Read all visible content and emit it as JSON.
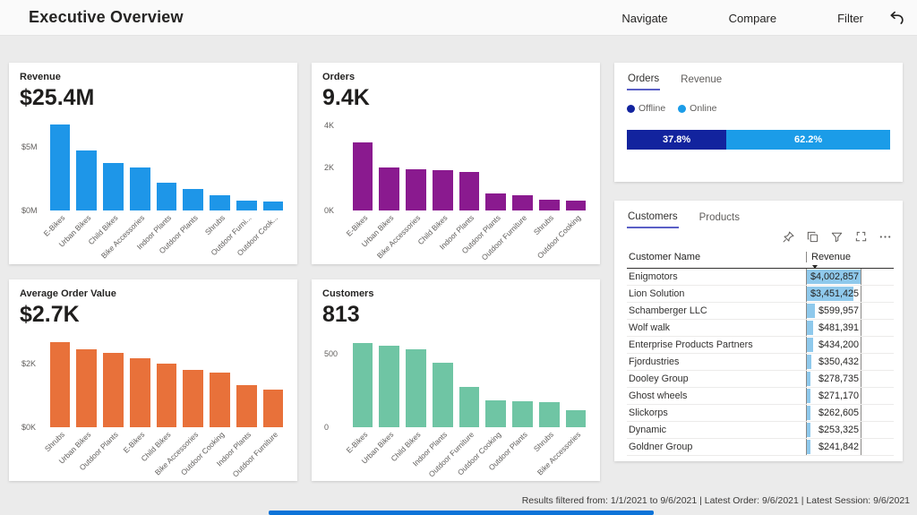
{
  "header": {
    "title": "Executive Overview",
    "nav": [
      "Navigate",
      "Compare",
      "Filter"
    ],
    "undo_icon": "undo-arrow"
  },
  "colors": {
    "background": "#EBEBEB",
    "card": "#FFFFFF",
    "text_dark": "#252423",
    "text_gray": "#605E5C",
    "tab_underline": "#5A5FC6",
    "table_data_bar": "#8FC9EC",
    "bottom_scrollbar": "#0C73D8"
  },
  "chart_data": [
    {
      "type": "bar",
      "title": "Revenue",
      "kpi_value": "$25.4M",
      "color": "#1E96E8",
      "unit": "$M",
      "ymax": 7.5,
      "yticks": [
        {
          "label": "$0M",
          "value": 0
        },
        {
          "label": "$5M",
          "value": 5
        }
      ],
      "categories": [
        "E-Bikes",
        "Urban Bikes",
        "Child Bikes",
        "Bike Accessories",
        "Indoor Plants",
        "Outdoor Plants",
        "Shrubs",
        "Outdoor Furni...",
        "Outdoor Cook..."
      ],
      "values": [
        6.7,
        4.7,
        3.7,
        3.4,
        2.2,
        1.7,
        1.2,
        0.8,
        0.7
      ]
    },
    {
      "type": "bar",
      "title": "Orders",
      "kpi_value": "9.4K",
      "color": "#8A1A8F",
      "unit": "K",
      "ymax": 4.5,
      "yticks": [
        {
          "label": "0K",
          "value": 0
        },
        {
          "label": "2K",
          "value": 2
        },
        {
          "label": "4K",
          "value": 4
        }
      ],
      "categories": [
        "E-Bikes",
        "Urban Bikes",
        "Bike Accessories",
        "Child Bikes",
        "Indoor Plants",
        "Outdoor Plants",
        "Outdoor Furniture",
        "Shrubs",
        "Outdoor Cooking"
      ],
      "values": [
        3.2,
        2.0,
        1.95,
        1.9,
        1.8,
        0.8,
        0.72,
        0.5,
        0.45
      ]
    },
    {
      "type": "bar",
      "title": "Average Order Value",
      "kpi_value": "$2.7K",
      "color": "#E8713A",
      "unit": "$K",
      "ymax": 3.0,
      "yticks": [
        {
          "label": "$0K",
          "value": 0
        },
        {
          "label": "$2K",
          "value": 2
        }
      ],
      "categories": [
        "Shrubs",
        "Urban Bikes",
        "Outdoor Plants",
        "E-Bikes",
        "Child Bikes",
        "Bike Accessories",
        "Outdoor Cooking",
        "Indoor Plants",
        "Outdoor Furniture"
      ],
      "values": [
        2.65,
        2.45,
        2.32,
        2.15,
        2.0,
        1.8,
        1.72,
        1.32,
        1.18
      ]
    },
    {
      "type": "bar",
      "title": "Customers",
      "kpi_value": "813",
      "color": "#6FC5A4",
      "unit": "",
      "ymax": 650,
      "yticks": [
        {
          "label": "0",
          "value": 0
        },
        {
          "label": "500",
          "value": 500
        }
      ],
      "categories": [
        "E-Bikes",
        "Urban Bikes",
        "Child Bikes",
        "Indoor Plants",
        "Outdoor Furniture",
        "Outdoor Cooking",
        "Outdoor Plants",
        "Shrubs",
        "Bike Accessories"
      ],
      "values": [
        570,
        550,
        530,
        440,
        275,
        180,
        178,
        172,
        113
      ]
    },
    {
      "type": "stacked-bar",
      "tabs": [
        "Orders",
        "Revenue"
      ],
      "active_tab": "Orders",
      "series": [
        {
          "name": "Offline",
          "value": 37.8,
          "label": "37.8%",
          "color": "#12239E"
        },
        {
          "name": "Online",
          "value": 62.2,
          "label": "62.2%",
          "color": "#1B9CE8"
        }
      ]
    },
    {
      "type": "table",
      "tabs": [
        "Customers",
        "Products"
      ],
      "active_tab": "Customers",
      "columns": [
        "Customer Name",
        "Revenue"
      ],
      "sort": {
        "column": "Revenue",
        "direction": "desc"
      },
      "toolbar_icons": [
        "pin-icon",
        "copy-icon",
        "filter-icon",
        "focus-mode-icon",
        "more-options-icon"
      ],
      "rows": [
        {
          "name": "Enigmotors",
          "revenue": "$4,002,857"
        },
        {
          "name": "Lion Solution",
          "revenue": "$3,451,425"
        },
        {
          "name": "Schamberger LLC",
          "revenue": "$599,957"
        },
        {
          "name": "Wolf walk",
          "revenue": "$481,391"
        },
        {
          "name": "Enterprise Products Partners",
          "revenue": "$434,200"
        },
        {
          "name": "Fjordustries",
          "revenue": "$350,432"
        },
        {
          "name": "Dooley Group",
          "revenue": "$278,735"
        },
        {
          "name": "Ghost wheels",
          "revenue": "$271,170"
        },
        {
          "name": "Slickorps",
          "revenue": "$262,605"
        },
        {
          "name": "Dynamic",
          "revenue": "$253,325"
        },
        {
          "name": "Goldner Group",
          "revenue": "$241,842"
        }
      ]
    }
  ],
  "status_bar": {
    "text": "Results filtered from: 1/1/2021 to 9/6/2021  |  Latest Order: 9/6/2021  |  Latest Session: 9/6/2021"
  }
}
